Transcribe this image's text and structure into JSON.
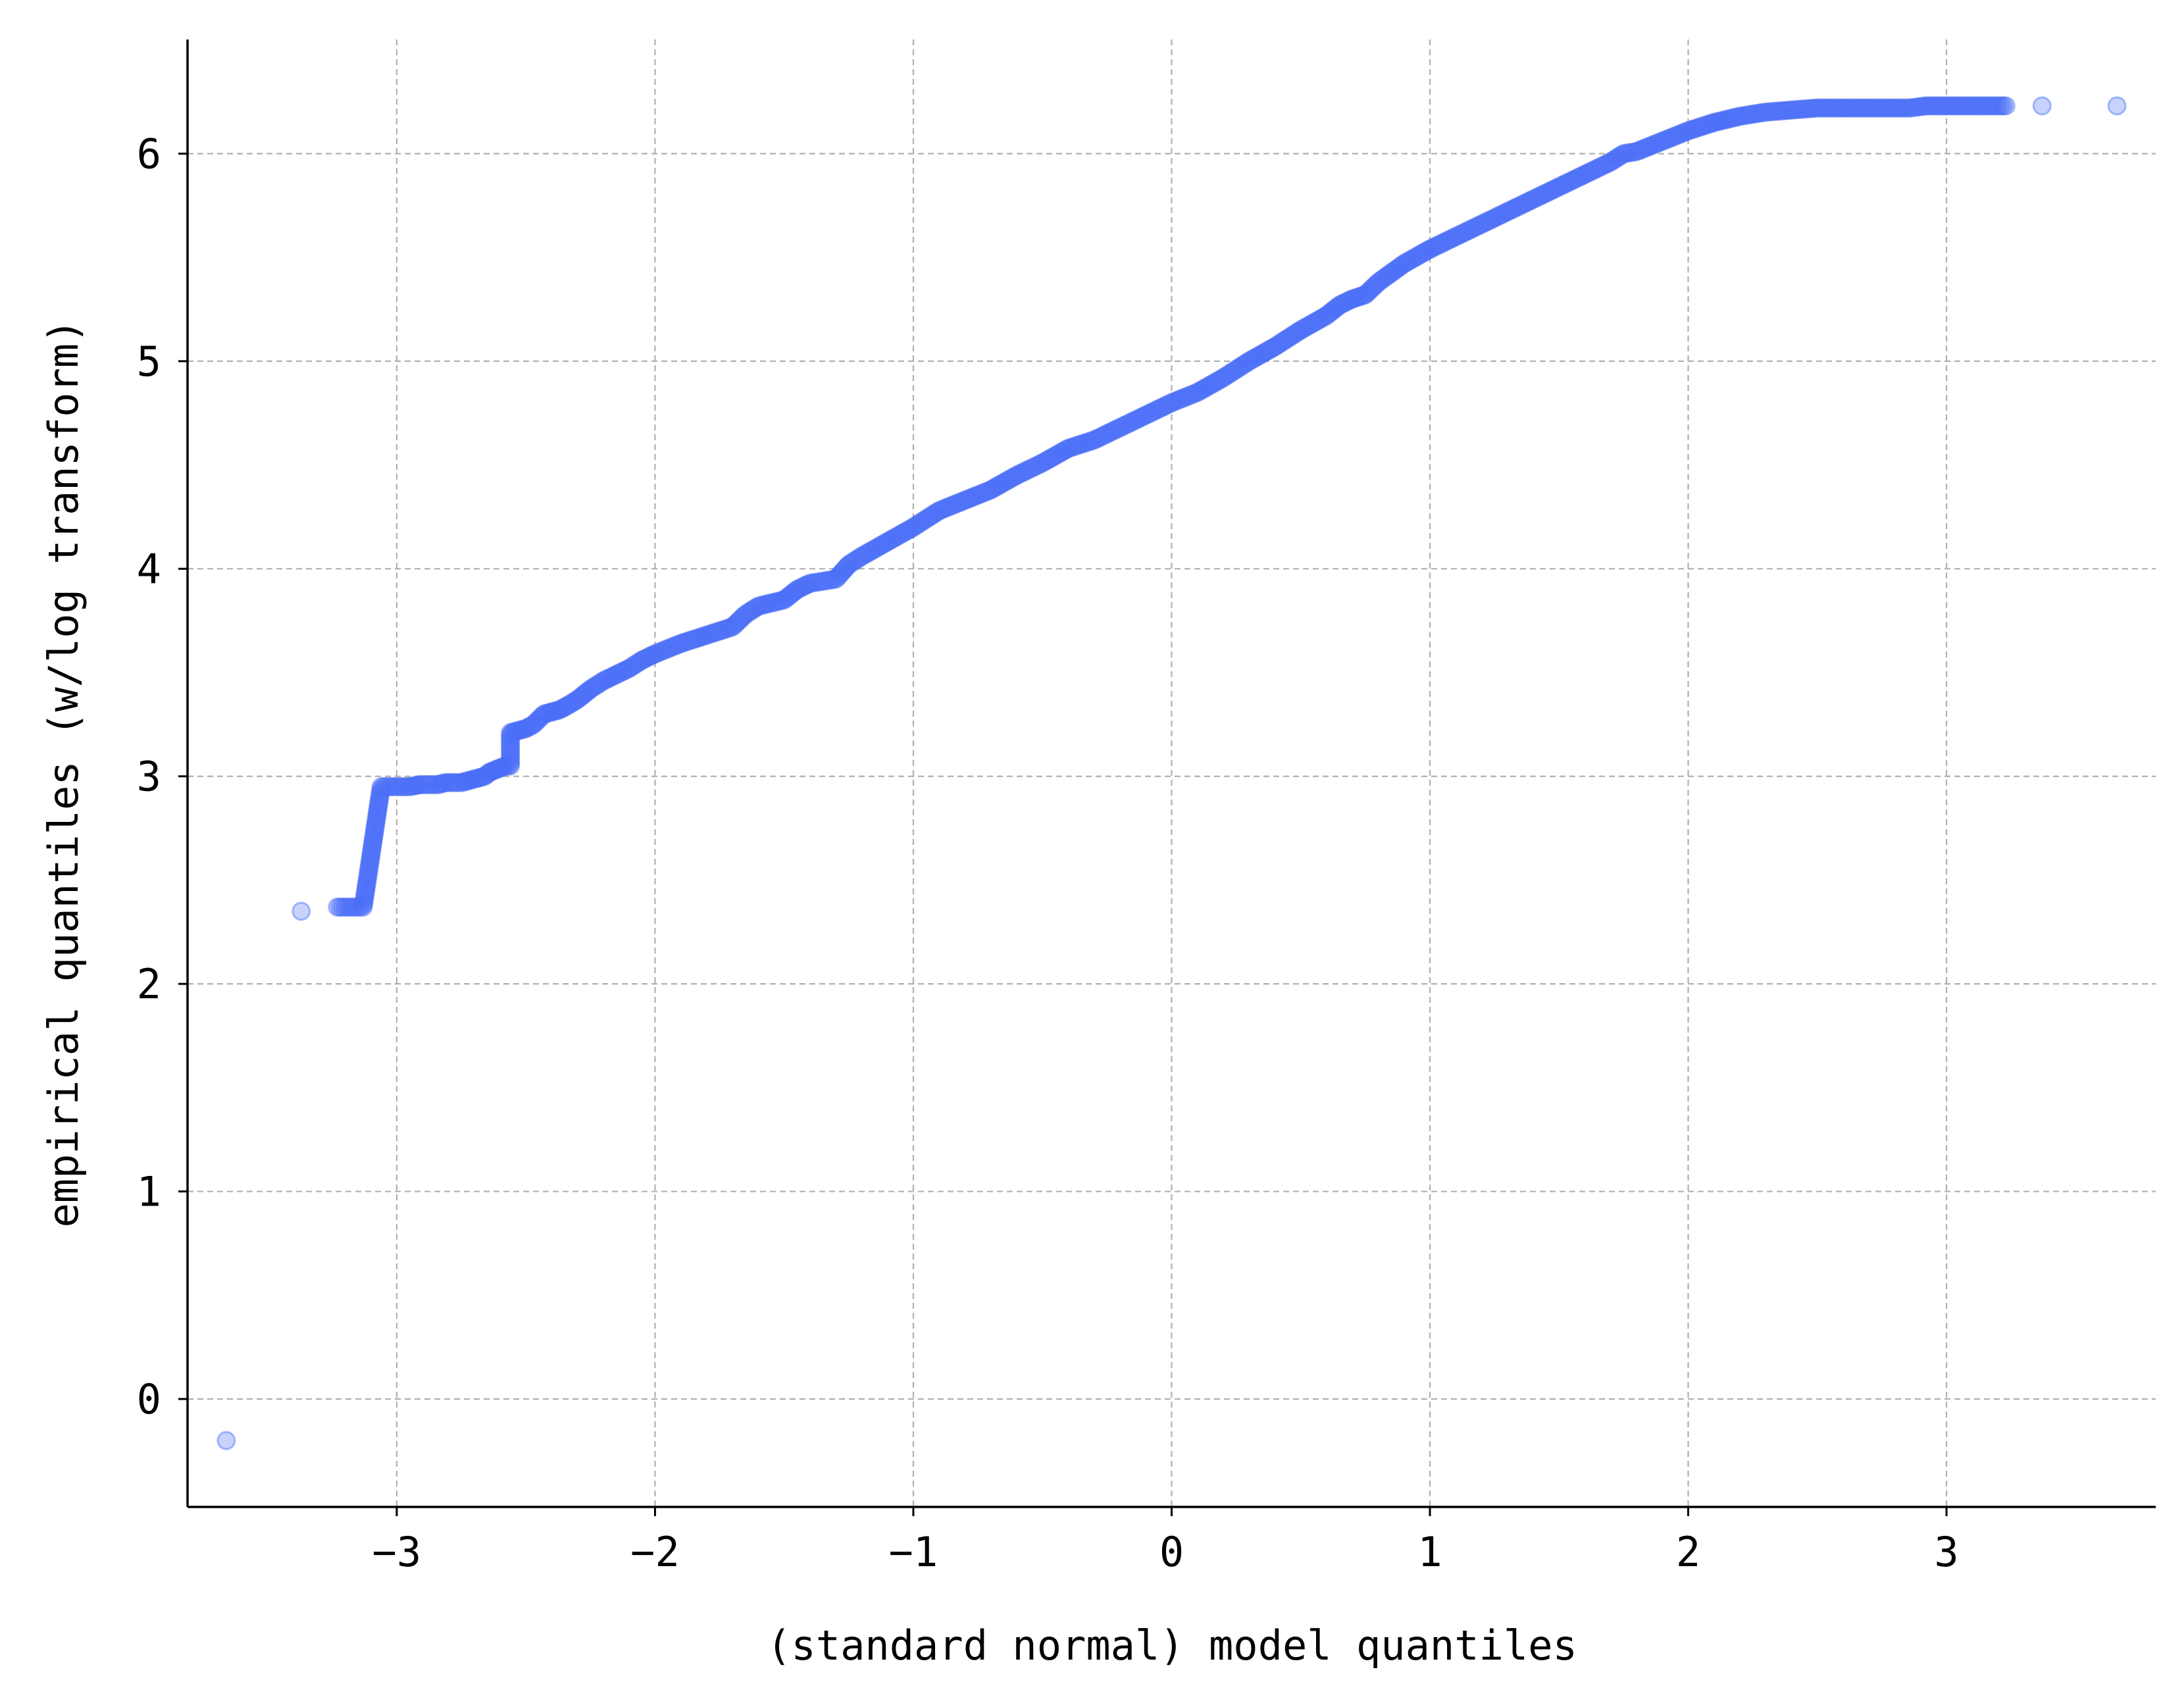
{
  "chart_data": {
    "type": "scatter",
    "title": "",
    "xlabel": "(standard normal) model quantiles",
    "ylabel": "empirical quantiles (w/log transform)",
    "xlim": [
      -3.81,
      3.81
    ],
    "ylim": [
      -0.52,
      6.55
    ],
    "xticks": [
      -3,
      -2,
      -1,
      0,
      1,
      2,
      3
    ],
    "xtick_labels": [
      "−3",
      "−2",
      "−1",
      "0",
      "1",
      "2",
      "3"
    ],
    "yticks": [
      0,
      1,
      2,
      3,
      4,
      5,
      6
    ],
    "ytick_labels": [
      "0",
      "1",
      "2",
      "3",
      "4",
      "5",
      "6"
    ],
    "grid": true,
    "marker_color": "#4a6cf7",
    "marker_alpha": 0.3,
    "series": [
      {
        "points": [
          [
            -3.66,
            -0.2
          ],
          [
            -3.37,
            2.35
          ],
          [
            -3.23,
            2.37
          ],
          [
            -3.13,
            2.37
          ],
          [
            -3.06,
            2.95
          ],
          [
            -3.0,
            2.95
          ],
          [
            -2.95,
            2.95
          ],
          [
            -2.91,
            2.96
          ],
          [
            -2.87,
            2.96
          ],
          [
            -2.84,
            2.96
          ],
          [
            -2.81,
            2.97
          ],
          [
            -2.78,
            2.97
          ],
          [
            -2.75,
            2.97
          ],
          [
            -2.72,
            2.98
          ],
          [
            -2.69,
            2.99
          ],
          [
            -2.66,
            3.0
          ],
          [
            -2.64,
            3.02
          ],
          [
            -2.62,
            3.03
          ],
          [
            -2.6,
            3.04
          ],
          [
            -2.58,
            3.05
          ],
          [
            -2.56,
            3.05
          ],
          [
            -2.56,
            3.21
          ],
          [
            -2.53,
            3.22
          ],
          [
            -2.5,
            3.23
          ],
          [
            -2.47,
            3.25
          ],
          [
            -2.43,
            3.3
          ],
          [
            -2.4,
            3.31
          ],
          [
            -2.37,
            3.32
          ],
          [
            -2.34,
            3.34
          ],
          [
            -2.3,
            3.37
          ],
          [
            -2.25,
            3.42
          ],
          [
            -2.2,
            3.46
          ],
          [
            -2.15,
            3.49
          ],
          [
            -2.1,
            3.52
          ],
          [
            -2.05,
            3.56
          ],
          [
            -2.0,
            3.59
          ],
          [
            -1.9,
            3.64
          ],
          [
            -1.8,
            3.68
          ],
          [
            -1.7,
            3.72
          ],
          [
            -1.65,
            3.78
          ],
          [
            -1.6,
            3.82
          ],
          [
            -1.5,
            3.85
          ],
          [
            -1.45,
            3.9
          ],
          [
            -1.4,
            3.93
          ],
          [
            -1.3,
            3.95
          ],
          [
            -1.25,
            4.02
          ],
          [
            -1.2,
            4.06
          ],
          [
            -1.1,
            4.13
          ],
          [
            -1.0,
            4.2
          ],
          [
            -0.9,
            4.28
          ],
          [
            -0.8,
            4.33
          ],
          [
            -0.7,
            4.38
          ],
          [
            -0.6,
            4.45
          ],
          [
            -0.5,
            4.51
          ],
          [
            -0.4,
            4.58
          ],
          [
            -0.3,
            4.62
          ],
          [
            -0.2,
            4.68
          ],
          [
            -0.1,
            4.74
          ],
          [
            0.0,
            4.8
          ],
          [
            0.1,
            4.85
          ],
          [
            0.2,
            4.92
          ],
          [
            0.3,
            5.0
          ],
          [
            0.4,
            5.07
          ],
          [
            0.5,
            5.15
          ],
          [
            0.6,
            5.22
          ],
          [
            0.65,
            5.27
          ],
          [
            0.7,
            5.3
          ],
          [
            0.75,
            5.32
          ],
          [
            0.8,
            5.38
          ],
          [
            0.9,
            5.47
          ],
          [
            1.0,
            5.54
          ],
          [
            1.1,
            5.6
          ],
          [
            1.2,
            5.66
          ],
          [
            1.3,
            5.72
          ],
          [
            1.4,
            5.78
          ],
          [
            1.5,
            5.84
          ],
          [
            1.6,
            5.9
          ],
          [
            1.7,
            5.96
          ],
          [
            1.75,
            6.0
          ],
          [
            1.8,
            6.01
          ],
          [
            1.9,
            6.06
          ],
          [
            2.0,
            6.11
          ],
          [
            2.1,
            6.15
          ],
          [
            2.2,
            6.18
          ],
          [
            2.3,
            6.2
          ],
          [
            2.4,
            6.21
          ],
          [
            2.5,
            6.22
          ],
          [
            2.56,
            6.22
          ],
          [
            2.62,
            6.22
          ],
          [
            2.68,
            6.22
          ],
          [
            2.74,
            6.22
          ],
          [
            2.8,
            6.22
          ],
          [
            2.86,
            6.22
          ],
          [
            2.92,
            6.23
          ],
          [
            2.98,
            6.23
          ],
          [
            3.05,
            6.23
          ],
          [
            3.13,
            6.23
          ],
          [
            3.23,
            6.23
          ],
          [
            3.37,
            6.23
          ],
          [
            3.66,
            6.23
          ]
        ]
      }
    ]
  }
}
